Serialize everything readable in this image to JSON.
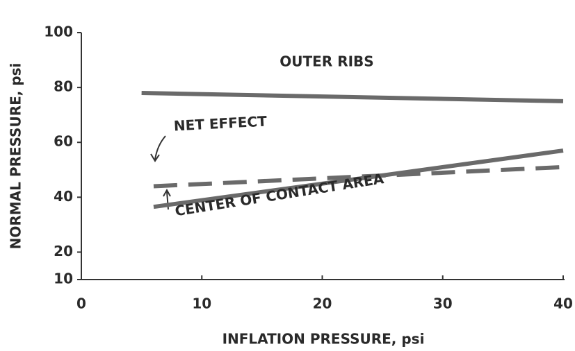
{
  "chart_data": {
    "type": "line",
    "xlabel": "INFLATION PRESSURE, psi",
    "ylabel": "NORMAL PRESSURE, psi",
    "xlim": [
      0,
      40
    ],
    "xticks": [
      0,
      10,
      20,
      30,
      40
    ],
    "ylim": [
      10,
      100
    ],
    "yticks": [
      10,
      20,
      40,
      60,
      80,
      100
    ],
    "series": [
      {
        "name": "OUTER RIBS",
        "color": "#6a6a6a",
        "dashed": false,
        "x": [
          5,
          40
        ],
        "values": [
          78,
          75
        ]
      },
      {
        "name": "NET EFFECT",
        "color": "#6a6a6a",
        "dashed": true,
        "x": [
          6,
          40
        ],
        "values": [
          44,
          51
        ]
      },
      {
        "name": "CENTER OF CONTACT AREA",
        "color": "#6a6a6a",
        "dashed": false,
        "x": [
          6,
          40
        ],
        "values": [
          36.5,
          57
        ]
      }
    ]
  }
}
